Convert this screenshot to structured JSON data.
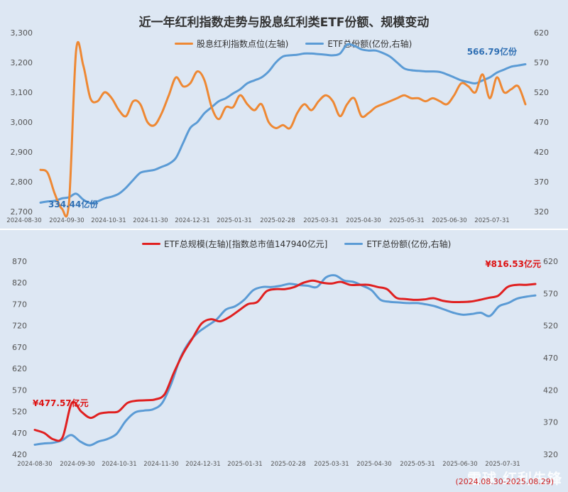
{
  "watermark": "雪球 红利先锋",
  "watermark_date": "(2024.08.30-2025.08.29)",
  "chart_data": [
    {
      "type": "line",
      "title": "近一年红利指数走势与股息红利类ETF份额、规模变动",
      "x_labels": [
        "2024-08-30",
        "2024-09-30",
        "2024-10-31",
        "2024-11-30",
        "2024-12-31",
        "2025-01-31",
        "2025-02-28",
        "2025-03-31",
        "2025-04-30",
        "2025-05-31",
        "2025-06-30",
        "2025-07-31"
      ],
      "y_left": {
        "min": 2700,
        "max": 3300,
        "ticks": [
          "2,700",
          "2,800",
          "2,900",
          "3,000",
          "3,100",
          "3,200",
          "3,300"
        ]
      },
      "y_right": {
        "min": 320,
        "max": 620,
        "ticks": [
          "320",
          "370",
          "420",
          "470",
          "520",
          "570",
          "620"
        ]
      },
      "annotations": {
        "start": "334.44亿份",
        "end": "566.79亿份"
      },
      "series": [
        {
          "name": "股息红利指数点位(左轴)",
          "axis": "left",
          "color": "#ee8833",
          "values": [
            2840,
            2830,
            2760,
            2710,
            2730,
            3240,
            3190,
            3080,
            3070,
            3100,
            3080,
            3040,
            3020,
            3070,
            3060,
            3000,
            2990,
            3030,
            3090,
            3150,
            3120,
            3130,
            3170,
            3140,
            3050,
            3010,
            3050,
            3050,
            3090,
            3060,
            3040,
            3060,
            3000,
            2980,
            2990,
            2980,
            3030,
            3060,
            3040,
            3070,
            3090,
            3070,
            3020,
            3060,
            3080,
            3020,
            3030,
            3050,
            3060,
            3070,
            3080,
            3090,
            3080,
            3080,
            3070,
            3080,
            3070,
            3060,
            3090,
            3130,
            3120,
            3100,
            3160,
            3080,
            3150,
            3100,
            3110,
            3120,
            3060
          ]
        },
        {
          "name": "ETF总份额(亿份,右轴)",
          "axis": "right",
          "color": "#5b9bd5",
          "values": [
            335,
            337,
            338,
            342,
            344,
            350,
            340,
            334,
            337,
            342,
            345,
            350,
            360,
            373,
            385,
            388,
            390,
            395,
            400,
            410,
            435,
            460,
            470,
            485,
            495,
            505,
            510,
            518,
            525,
            535,
            540,
            545,
            555,
            570,
            580,
            582,
            583,
            585,
            585,
            584,
            583,
            582,
            585,
            600,
            598,
            592,
            590,
            590,
            586,
            580,
            570,
            560,
            557,
            556,
            555,
            555,
            554,
            550,
            545,
            540,
            537,
            535,
            540,
            545,
            553,
            558,
            563,
            565,
            567
          ]
        }
      ]
    },
    {
      "type": "line",
      "title": "",
      "x_labels": [
        "2024-08-30",
        "2024-09-30",
        "2024-10-31",
        "2024-11-30",
        "2024-12-31",
        "2025-01-31",
        "2025-02-28",
        "2025-03-31",
        "2025-04-30",
        "2025-05-31",
        "2025-06-30",
        "2025-07-31"
      ],
      "y_left": {
        "min": 420,
        "max": 870,
        "ticks": [
          "420",
          "470",
          "520",
          "570",
          "620",
          "670",
          "720",
          "770",
          "820",
          "870"
        ]
      },
      "y_right": {
        "min": 320,
        "max": 620,
        "ticks": [
          "320",
          "370",
          "420",
          "470",
          "520",
          "570",
          "620"
        ]
      },
      "annotations": {
        "start": "¥477.57亿元",
        "end": "¥816.53亿元"
      },
      "series": [
        {
          "name": "ETF总规模(左轴)[指数总市值147940亿元]",
          "axis": "left",
          "color": "#e02020",
          "values": [
            477,
            470,
            455,
            460,
            540,
            520,
            505,
            515,
            518,
            520,
            540,
            545,
            546,
            548,
            560,
            610,
            655,
            690,
            725,
            735,
            730,
            740,
            755,
            770,
            775,
            800,
            805,
            805,
            810,
            820,
            825,
            820,
            818,
            822,
            815,
            815,
            815,
            810,
            805,
            785,
            782,
            780,
            781,
            784,
            778,
            775,
            775,
            776,
            780,
            785,
            790,
            810,
            815,
            815,
            817
          ]
        },
        {
          "name": "ETF总份额(亿份,右轴)",
          "axis": "right",
          "color": "#5b9bd5",
          "values": [
            335,
            337,
            338,
            342,
            350,
            340,
            334,
            340,
            344,
            352,
            372,
            385,
            388,
            390,
            400,
            430,
            470,
            495,
            510,
            520,
            530,
            545,
            550,
            560,
            575,
            580,
            580,
            582,
            585,
            583,
            582,
            580,
            595,
            598,
            590,
            588,
            582,
            575,
            560,
            557,
            556,
            555,
            555,
            553,
            550,
            545,
            540,
            537,
            538,
            540,
            535,
            550,
            555,
            562,
            565,
            567
          ]
        }
      ]
    }
  ]
}
